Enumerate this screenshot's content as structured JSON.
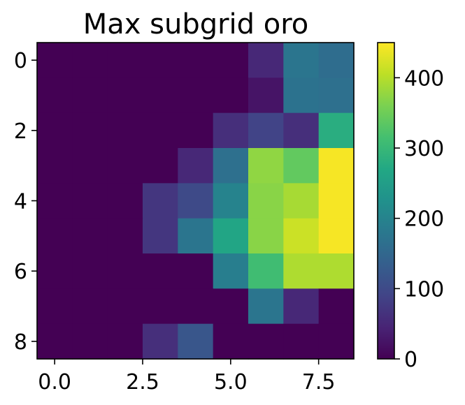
{
  "chart_data": {
    "type": "heatmap",
    "title": "Max subgrid oro",
    "xlabel": "",
    "ylabel": "",
    "colormap": "viridis",
    "xlim": [
      -0.5,
      8.5
    ],
    "ylim": [
      8.5,
      -0.5
    ],
    "x_ticks": [
      0.0,
      2.5,
      5.0,
      7.5
    ],
    "x_tick_labels": [
      "0.0",
      "2.5",
      "5.0",
      "7.5"
    ],
    "y_ticks": [
      0,
      2,
      4,
      6,
      8
    ],
    "y_tick_labels": [
      "0",
      "2",
      "4",
      "6",
      "8"
    ],
    "colorbar": {
      "vmin": 0,
      "vmax": 450,
      "ticks": [
        0,
        100,
        200,
        300,
        400
      ],
      "tick_labels": [
        "0",
        "100",
        "200",
        "300",
        "400"
      ]
    },
    "grid": false,
    "values": [
      [
        0,
        0,
        0,
        0,
        0,
        0,
        50,
        175,
        160
      ],
      [
        0,
        0,
        0,
        0,
        0,
        0,
        25,
        170,
        165
      ],
      [
        0,
        0,
        0,
        0,
        0,
        60,
        90,
        60,
        280
      ],
      [
        0,
        0,
        0,
        0,
        50,
        165,
        375,
        340,
        445
      ],
      [
        0,
        0,
        0,
        70,
        100,
        200,
        370,
        390,
        445
      ],
      [
        0,
        0,
        0,
        70,
        175,
        265,
        370,
        415,
        445
      ],
      [
        0,
        0,
        0,
        0,
        0,
        190,
        310,
        395,
        395
      ],
      [
        0,
        0,
        0,
        0,
        0,
        0,
        175,
        50,
        0
      ],
      [
        0,
        0,
        0,
        60,
        120,
        0,
        0,
        0,
        0
      ]
    ]
  }
}
